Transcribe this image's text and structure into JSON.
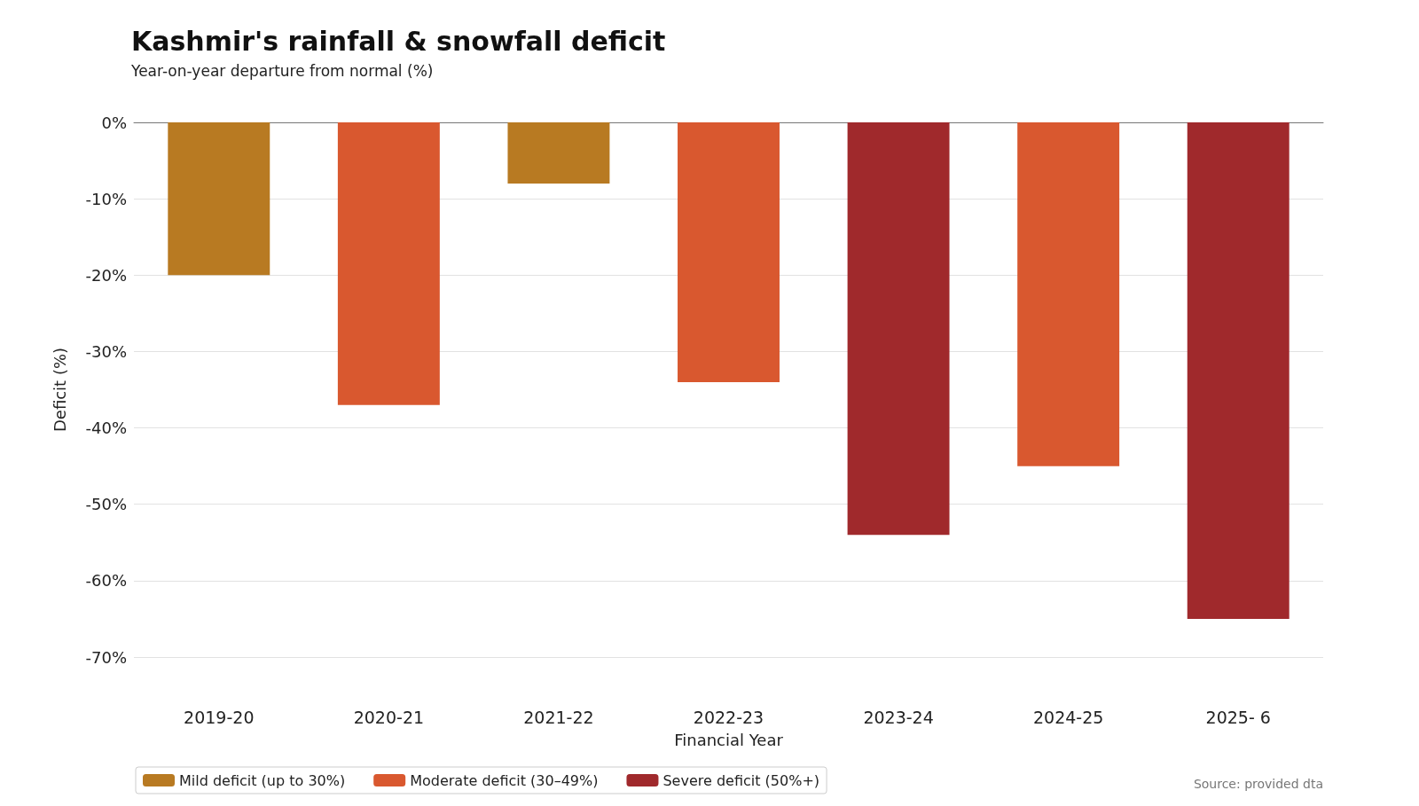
{
  "chart_data": {
    "type": "bar",
    "title": "Kashmir's rainfall & snowfall deficit",
    "subtitle": "Year-on-year departure from normal (%)",
    "xlabel": "Financial Year",
    "ylabel": "Deficit (%)",
    "categories": [
      "2019-20",
      "2020-21",
      "2021-22",
      "2022-23",
      "2023-24",
      "2024-25",
      "2025- 6"
    ],
    "stacked": true,
    "series": [
      {
        "name": "Mild deficit (up to 30%)",
        "color": "#b87a22",
        "values": [
          -20,
          null,
          -8,
          null,
          null,
          null,
          null
        ]
      },
      {
        "name": "Moderate deficit (30–49%)",
        "color": "#d9582f",
        "values": [
          null,
          -37,
          null,
          -34,
          null,
          -45,
          null
        ]
      },
      {
        "name": "Severe deficit (50%+)",
        "color": "#a0292c",
        "values": [
          null,
          null,
          null,
          null,
          -54,
          null,
          -65
        ]
      }
    ],
    "ylim": [
      -70,
      0
    ],
    "yticks": [
      {
        "value": 0,
        "label": "0%"
      },
      {
        "value": -10,
        "label": "-10%"
      },
      {
        "value": -20,
        "label": "-20%"
      },
      {
        "value": -30,
        "label": "-30%"
      },
      {
        "value": -40,
        "label": "-40%"
      },
      {
        "value": -50,
        "label": "-50%"
      },
      {
        "value": -60,
        "label": "-60%"
      },
      {
        "value": -70,
        "label": "-70%"
      }
    ],
    "grid": "y",
    "legend": "bottom left",
    "annotations": [
      "Source: provided dta"
    ]
  }
}
